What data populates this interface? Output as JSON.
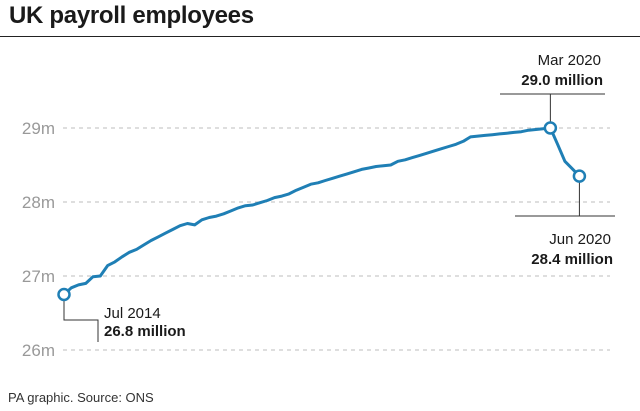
{
  "title": "UK payroll employees",
  "source": "PA graphic. Source: ONS",
  "colors": {
    "line": "#1f7fb5",
    "grid": "#bdbdbd",
    "tick": "#999999",
    "text": "#1a1a1a"
  },
  "chart_data": {
    "type": "line",
    "title": "UK payroll employees",
    "xlabel": "",
    "ylabel": "",
    "y_tick_labels": [
      "26m",
      "27m",
      "28m",
      "29m"
    ],
    "y_ticks": [
      26,
      27,
      28,
      29
    ],
    "ylim": [
      26,
      29.3
    ],
    "grid": "horizontal dashed",
    "x_start": "2014-07",
    "x_end": "2020-06",
    "series": [
      {
        "values": [
          26.75,
          26.84,
          26.88,
          26.9,
          26.99,
          27.0,
          27.14,
          27.19,
          27.26,
          27.32,
          27.36,
          27.42,
          27.48,
          27.53,
          27.58,
          27.63,
          27.68,
          27.71,
          27.69,
          27.76,
          27.79,
          27.81,
          27.84,
          27.88,
          27.92,
          27.95,
          27.96,
          27.99,
          28.02,
          28.06,
          28.08,
          28.11,
          28.16,
          28.2,
          28.24,
          28.26,
          28.29,
          28.32,
          28.35,
          28.38,
          28.41,
          28.44,
          28.46,
          28.48,
          28.49,
          28.5,
          28.55,
          28.57,
          28.6,
          28.63,
          28.66,
          28.69,
          28.72,
          28.75,
          28.78,
          28.82,
          28.88,
          28.89,
          28.9,
          28.91,
          28.92,
          28.93,
          28.94,
          28.95,
          28.97,
          28.98,
          28.99,
          29.0,
          28.78,
          28.55,
          28.45,
          28.35
        ]
      }
    ],
    "annotations": [
      {
        "date": "Jul 2014",
        "value": "26.8 million"
      },
      {
        "date": "Mar 2020",
        "value": "29.0 million"
      },
      {
        "date": "Jun 2020",
        "value": "28.4 million"
      }
    ]
  }
}
